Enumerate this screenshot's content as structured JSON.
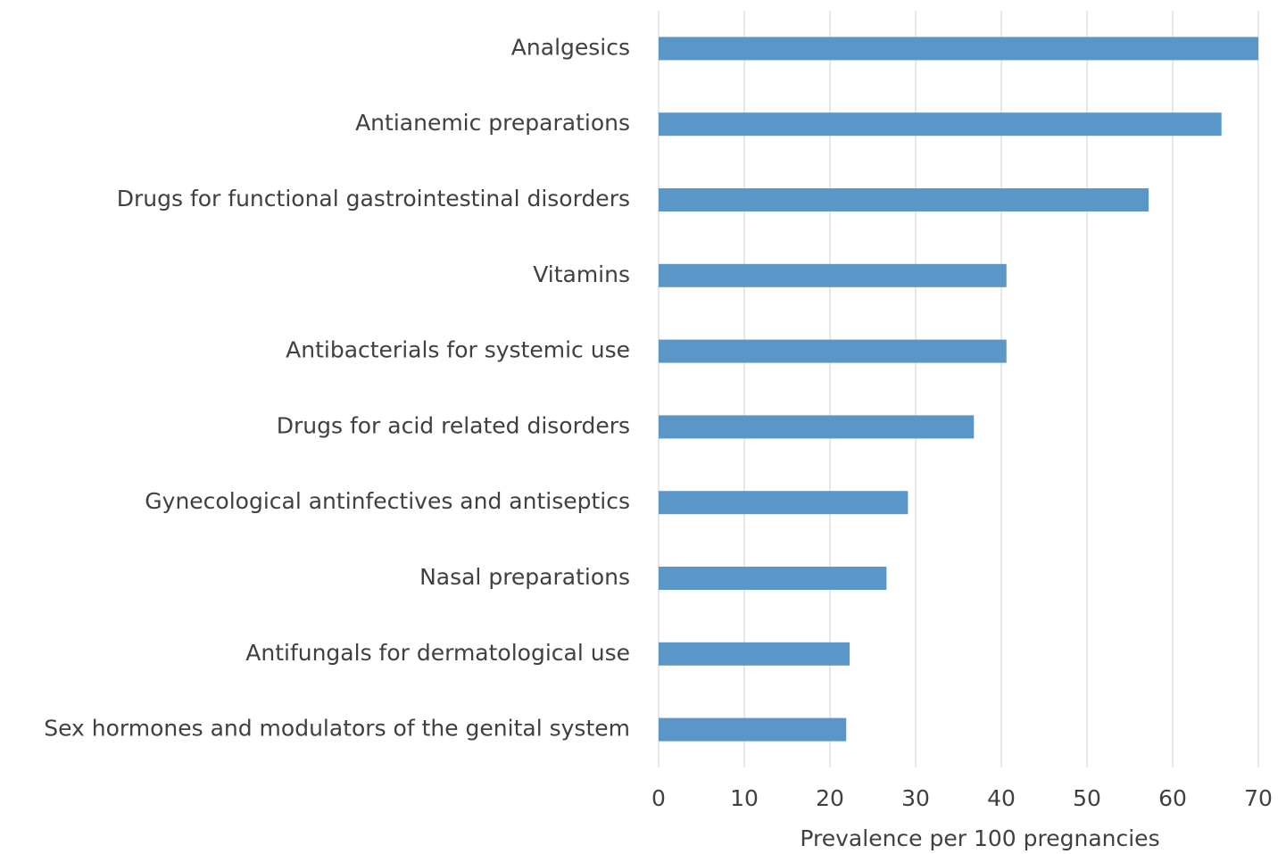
{
  "chart_data": {
    "type": "hbar",
    "categories": [
      "Analgesics",
      "Antianemic preparations",
      "Drugs for functional gastrointestinal disorders",
      "Vitamins",
      "Antibacterials for systemic use",
      "Drugs for acid related disorders",
      "Gynecological antinfectives and antiseptics",
      "Nasal preparations",
      "Antifungals for dermatological use",
      "Sex hormones and modulators of the genital system"
    ],
    "values": [
      70.0,
      65.7,
      57.2,
      40.6,
      40.6,
      36.8,
      29.1,
      26.6,
      22.3,
      21.9
    ],
    "color": "#5b96c8",
    "xlabel": "Prevalence  per 100 pregnancies",
    "xlim": [
      0,
      70
    ],
    "xticks": [
      0,
      10,
      20,
      30,
      40,
      50,
      60,
      70
    ],
    "grid": true
  }
}
